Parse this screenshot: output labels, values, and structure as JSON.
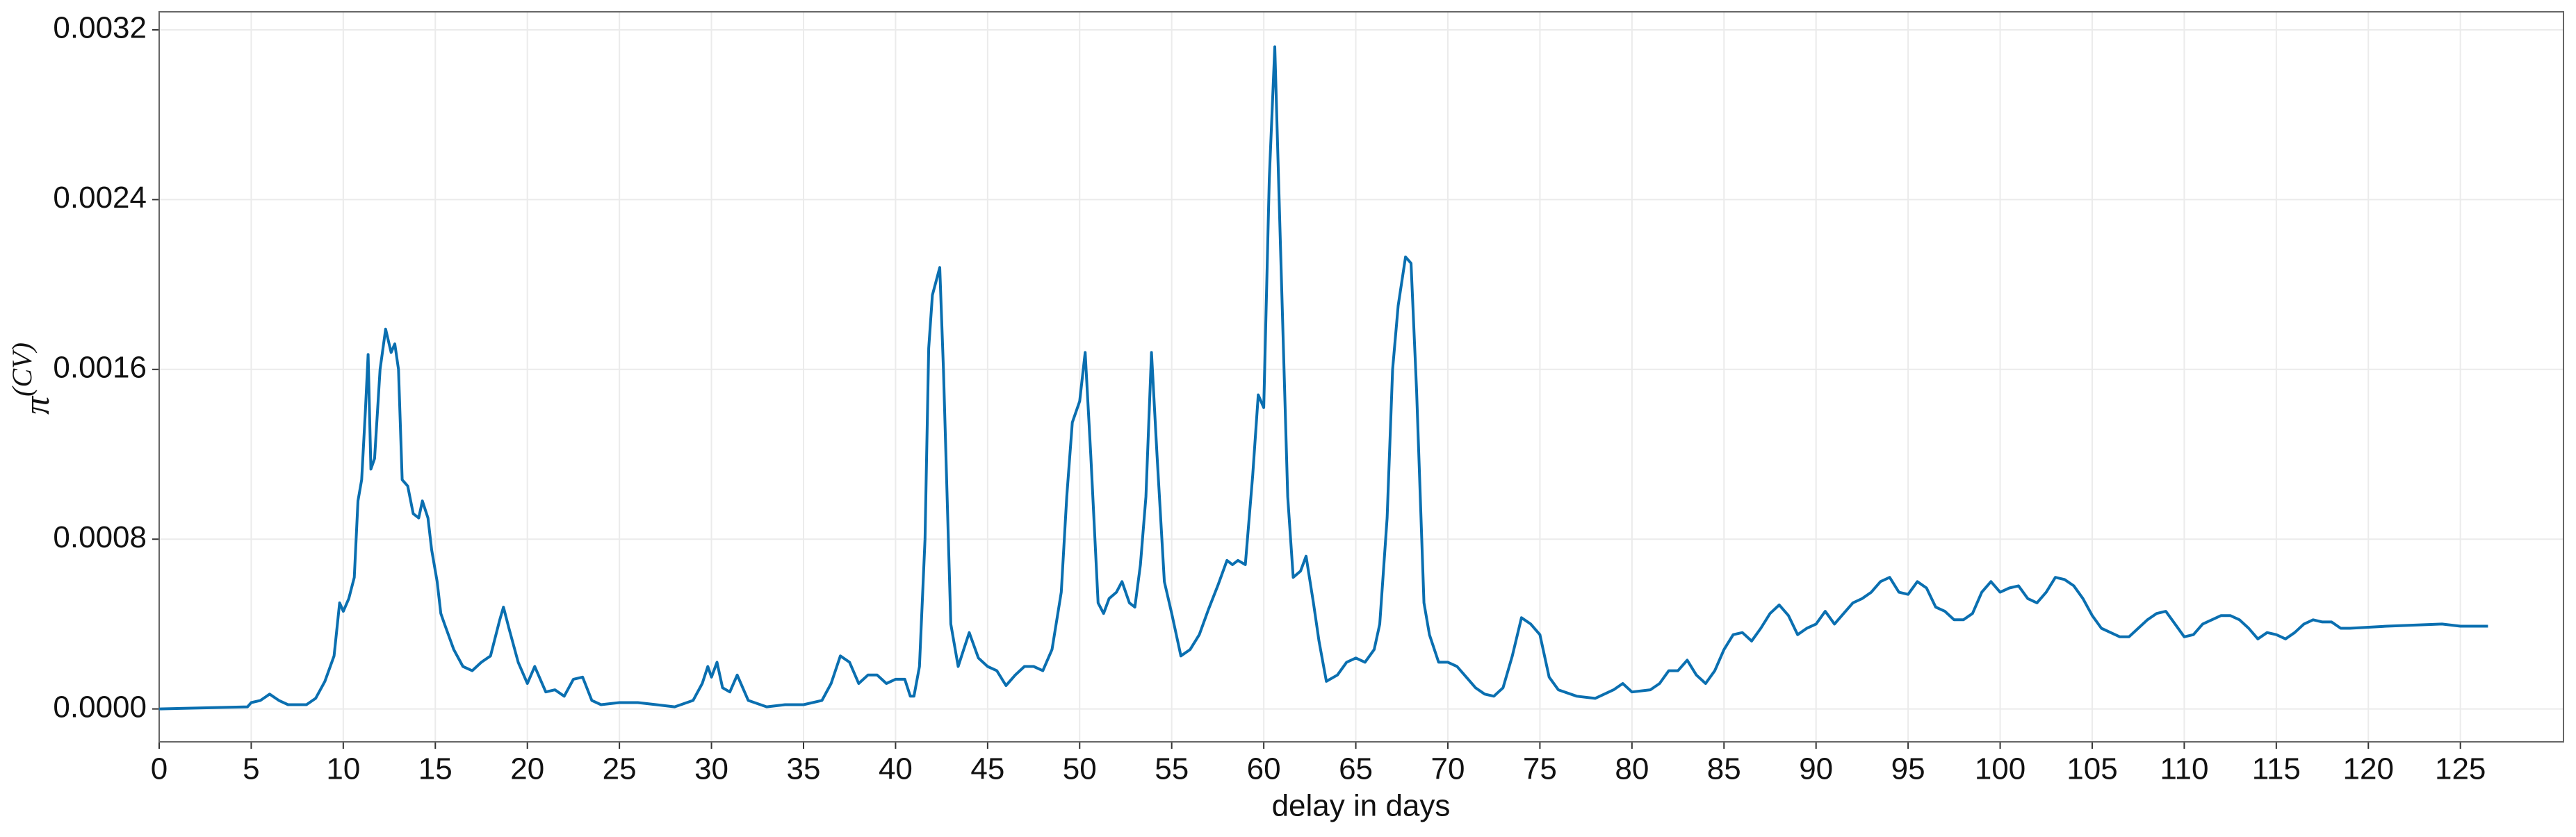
{
  "chart_data": {
    "type": "line",
    "xlabel": "delay in days",
    "ylabel": "π",
    "ylabel_superscript": "(CV)",
    "color": "#0a6fb0",
    "grid": true,
    "xlim": [
      0,
      130.6
    ],
    "ylim": [
      -0.000155,
      0.003285
    ],
    "xticks": [
      0,
      5,
      10,
      15,
      20,
      25,
      30,
      35,
      40,
      45,
      50,
      55,
      60,
      65,
      70,
      75,
      80,
      85,
      90,
      95,
      100,
      105,
      110,
      115,
      120,
      125
    ],
    "yticks": [
      {
        "value": 0,
        "label": "0.0000"
      },
      {
        "value": 0.0008,
        "label": "0.0008"
      },
      {
        "value": 0.0016,
        "label": "0.0016"
      },
      {
        "value": 0.0024,
        "label": "0.0024"
      },
      {
        "value": 0.0032,
        "label": "0.0032"
      }
    ],
    "x": [
      0,
      4.8,
      5,
      5.5,
      6,
      6.5,
      7,
      8,
      8.5,
      9,
      9.5,
      9.8,
      10,
      10.3,
      10.6,
      10.8,
      11,
      11.2,
      11.35,
      11.5,
      11.7,
      12,
      12.3,
      12.6,
      12.8,
      13,
      13.2,
      13.5,
      13.8,
      14.1,
      14.3,
      14.6,
      14.8,
      15.1,
      15.3,
      15.5,
      16,
      16.5,
      17,
      17.5,
      18,
      18.5,
      18.7,
      19,
      19.5,
      20,
      20.4,
      21,
      21.5,
      22,
      22.5,
      23,
      23.5,
      24,
      25,
      26,
      27,
      28,
      29,
      29.5,
      29.8,
      30,
      30.3,
      30.6,
      31,
      31.4,
      32,
      33,
      34,
      35,
      36,
      36.5,
      37,
      37.5,
      38,
      38.5,
      39,
      39.5,
      40,
      40.5,
      40.8,
      41,
      41.3,
      41.6,
      41.8,
      42,
      42.4,
      42.6,
      43,
      43.4,
      43.7,
      44,
      44.5,
      45,
      45.5,
      46,
      46.5,
      47,
      47.5,
      48,
      48.5,
      49,
      49.3,
      49.6,
      50,
      50.3,
      50.6,
      51,
      51.3,
      51.6,
      52,
      52.3,
      52.7,
      53,
      53.3,
      53.6,
      53.9,
      54.2,
      54.6,
      55,
      55.5,
      56,
      56.5,
      57,
      57.5,
      58,
      58.3,
      58.6,
      59,
      59.4,
      59.7,
      60,
      60.3,
      60.6,
      60.9,
      61.3,
      61.6,
      62,
      62.3,
      62.7,
      63,
      63.4,
      64,
      64.5,
      65,
      65.5,
      66,
      66.3,
      66.7,
      67,
      67.3,
      67.7,
      68,
      68.3,
      68.7,
      69,
      69.5,
      70,
      70.5,
      71,
      71.5,
      72,
      72.5,
      73,
      73.5,
      74,
      74.5,
      75,
      75.5,
      76,
      77,
      78,
      79,
      79.5,
      80,
      81,
      81.5,
      82,
      82.5,
      83,
      83.5,
      84,
      84.5,
      85,
      85.5,
      86,
      86.5,
      87,
      87.5,
      88,
      88.5,
      89,
      89.5,
      90,
      90.5,
      91,
      91.5,
      92,
      92.5,
      93,
      93.5,
      94,
      94.5,
      95,
      95.5,
      96,
      96.5,
      97,
      97.5,
      98,
      98.5,
      99,
      99.5,
      100,
      100.5,
      101,
      101.5,
      102,
      102.5,
      103,
      103.5,
      104,
      104.5,
      105,
      105.5,
      106,
      106.5,
      107,
      107.5,
      108,
      108.5,
      109,
      109.5,
      110,
      110.5,
      111,
      111.5,
      112,
      112.5,
      113,
      113.5,
      114,
      114.5,
      115,
      115.5,
      116,
      116.5,
      117,
      117.5,
      118,
      118.5,
      119,
      121,
      124,
      125,
      126.5
    ],
    "values": [
      0,
      1e-05,
      3e-05,
      4e-05,
      7e-05,
      4e-05,
      2e-05,
      2e-05,
      5e-05,
      0.00013,
      0.00025,
      0.0005,
      0.00046,
      0.00052,
      0.00062,
      0.00098,
      0.00108,
      0.0014,
      0.00167,
      0.00113,
      0.00118,
      0.0016,
      0.00179,
      0.00168,
      0.00172,
      0.0016,
      0.00108,
      0.00105,
      0.00092,
      0.0009,
      0.00098,
      0.0009,
      0.00075,
      0.0006,
      0.00045,
      0.0004,
      0.00028,
      0.0002,
      0.00018,
      0.00022,
      0.00025,
      0.00042,
      0.00048,
      0.00038,
      0.00022,
      0.00012,
      0.0002,
      8e-05,
      9e-05,
      6e-05,
      0.00014,
      0.00015,
      4e-05,
      2e-05,
      3e-05,
      3e-05,
      2e-05,
      1e-05,
      4e-05,
      0.00012,
      0.0002,
      0.00015,
      0.00022,
      0.0001,
      8e-05,
      0.00016,
      4e-05,
      1e-05,
      2e-05,
      2e-05,
      4e-05,
      0.00012,
      0.00025,
      0.00022,
      0.00012,
      0.00016,
      0.00016,
      0.00012,
      0.00014,
      0.00014,
      6e-05,
      6e-05,
      0.0002,
      0.0008,
      0.0017,
      0.00195,
      0.00208,
      0.0016,
      0.0004,
      0.0002,
      0.00028,
      0.00036,
      0.00024,
      0.0002,
      0.00018,
      0.00011,
      0.00016,
      0.0002,
      0.0002,
      0.00018,
      0.00028,
      0.00055,
      0.001,
      0.00135,
      0.00145,
      0.00168,
      0.0012,
      0.0005,
      0.00045,
      0.00052,
      0.00055,
      0.0006,
      0.0005,
      0.00048,
      0.00068,
      0.001,
      0.00168,
      0.0012,
      0.0006,
      0.00045,
      0.00025,
      0.00028,
      0.00035,
      0.00047,
      0.00058,
      0.0007,
      0.00068,
      0.0007,
      0.00068,
      0.0011,
      0.00148,
      0.00142,
      0.0025,
      0.00312,
      0.0022,
      0.001,
      0.00062,
      0.00065,
      0.00072,
      0.0005,
      0.00032,
      0.00013,
      0.00016,
      0.00022,
      0.00024,
      0.00022,
      0.00028,
      0.0004,
      0.0009,
      0.0016,
      0.0019,
      0.00213,
      0.0021,
      0.0015,
      0.0005,
      0.00035,
      0.00022,
      0.00022,
      0.0002,
      0.00015,
      0.0001,
      7e-05,
      6e-05,
      0.0001,
      0.00025,
      0.00043,
      0.0004,
      0.00035,
      0.00015,
      9e-05,
      6e-05,
      5e-05,
      9e-05,
      0.00012,
      8e-05,
      9e-05,
      0.00012,
      0.00018,
      0.00018,
      0.00023,
      0.00016,
      0.00012,
      0.00018,
      0.00028,
      0.00035,
      0.00036,
      0.00032,
      0.00038,
      0.00045,
      0.00049,
      0.00044,
      0.00035,
      0.00038,
      0.0004,
      0.00046,
      0.0004,
      0.00045,
      0.0005,
      0.00052,
      0.00055,
      0.0006,
      0.00062,
      0.00055,
      0.00054,
      0.0006,
      0.00057,
      0.00048,
      0.00046,
      0.00042,
      0.00042,
      0.00045,
      0.00055,
      0.0006,
      0.00055,
      0.00057,
      0.00058,
      0.00052,
      0.0005,
      0.00055,
      0.00062,
      0.00061,
      0.00058,
      0.00052,
      0.00044,
      0.00038,
      0.00036,
      0.00034,
      0.00034,
      0.00038,
      0.00042,
      0.00045,
      0.00046,
      0.0004,
      0.00034,
      0.00035,
      0.0004,
      0.00042,
      0.00044,
      0.00044,
      0.00042,
      0.00038,
      0.00033,
      0.00036,
      0.00035,
      0.00033,
      0.00036,
      0.0004,
      0.00042,
      0.00041,
      0.00041,
      0.00038,
      0.00038,
      0.00039,
      0.0004,
      0.00039,
      0.00039
    ]
  }
}
